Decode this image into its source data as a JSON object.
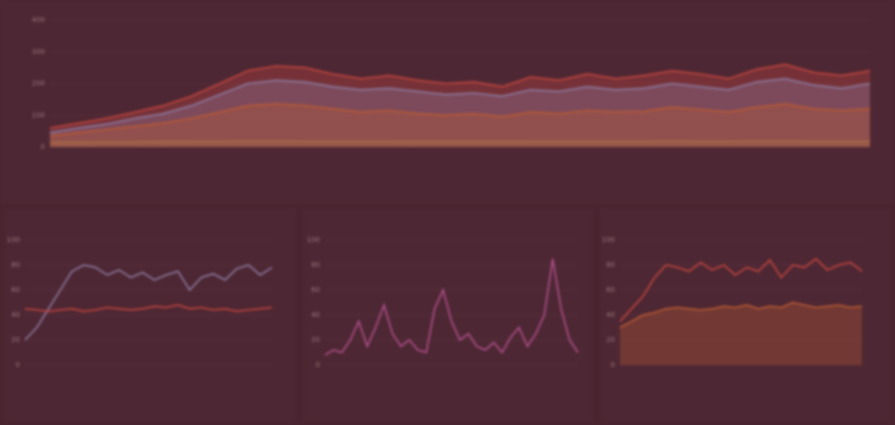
{
  "chart_data": [
    {
      "type": "line",
      "ylim": [
        0,
        400
      ],
      "yticks": [
        0,
        100,
        200,
        300,
        400
      ],
      "grid": true,
      "series": [
        {
          "color": "#c0453f",
          "fill": true,
          "values": [
            60,
            75,
            90,
            110,
            130,
            160,
            200,
            240,
            255,
            250,
            230,
            215,
            225,
            210,
            200,
            205,
            190,
            220,
            210,
            230,
            215,
            225,
            240,
            230,
            215,
            245,
            260,
            235,
            225,
            240
          ]
        },
        {
          "color": "#8d7aa0",
          "fill": true,
          "values": [
            45,
            60,
            72,
            90,
            105,
            130,
            165,
            200,
            210,
            205,
            190,
            180,
            185,
            175,
            165,
            170,
            160,
            180,
            175,
            190,
            180,
            185,
            200,
            190,
            180,
            205,
            215,
            195,
            185,
            200
          ]
        },
        {
          "color": "#b85a35",
          "fill": true,
          "values": [
            35,
            45,
            55,
            65,
            75,
            90,
            110,
            130,
            135,
            130,
            120,
            110,
            115,
            105,
            100,
            105,
            95,
            110,
            105,
            115,
            110,
            112,
            125,
            118,
            110,
            125,
            135,
            120,
            115,
            120
          ]
        },
        {
          "color": "#a86a45",
          "fill": true,
          "values": [
            15,
            15,
            16,
            16,
            17,
            18,
            18,
            19,
            19,
            18,
            18,
            18,
            18,
            17,
            17,
            17,
            17,
            18,
            18,
            18,
            18,
            18,
            19,
            18,
            18,
            19,
            19,
            18,
            18,
            18
          ]
        }
      ]
    },
    {
      "type": "line",
      "ylim": [
        0,
        100
      ],
      "yticks": [
        0,
        20,
        40,
        60,
        80,
        100
      ],
      "grid": true,
      "series": [
        {
          "color": "#8d7aa0",
          "fill": false,
          "values": [
            20,
            30,
            45,
            60,
            75,
            80,
            78,
            72,
            76,
            70,
            74,
            68,
            72,
            75,
            60,
            70,
            73,
            68,
            77,
            80,
            72,
            78
          ]
        },
        {
          "color": "#c0453f",
          "fill": false,
          "values": [
            45,
            44,
            43,
            44,
            45,
            43,
            44,
            46,
            45,
            44,
            45,
            47,
            46,
            48,
            45,
            46,
            44,
            45,
            43,
            44,
            45,
            46
          ]
        }
      ]
    },
    {
      "type": "line",
      "ylim": [
        0,
        100
      ],
      "yticks": [
        0,
        20,
        40,
        60,
        80,
        100
      ],
      "grid": true,
      "series": [
        {
          "color": "#b04f8a",
          "fill": false,
          "values": [
            8,
            12,
            10,
            20,
            35,
            15,
            30,
            48,
            25,
            15,
            20,
            12,
            10,
            45,
            60,
            35,
            20,
            25,
            15,
            12,
            18,
            10,
            22,
            30,
            15,
            25,
            40,
            85,
            45,
            20,
            10
          ]
        }
      ]
    },
    {
      "type": "line",
      "ylim": [
        0,
        100
      ],
      "yticks": [
        0,
        20,
        40,
        60,
        80,
        100
      ],
      "grid": true,
      "series": [
        {
          "color": "#b85a35",
          "fill": true,
          "values": [
            30,
            35,
            40,
            42,
            45,
            46,
            45,
            44,
            45,
            47,
            46,
            48,
            45,
            47,
            46,
            50,
            48,
            46,
            47,
            48,
            46,
            47
          ]
        },
        {
          "color": "#c0453f",
          "fill": false,
          "values": [
            35,
            45,
            55,
            70,
            80,
            78,
            75,
            82,
            76,
            80,
            72,
            78,
            75,
            84,
            70,
            80,
            78,
            85,
            76,
            80,
            82,
            75
          ]
        }
      ]
    }
  ]
}
